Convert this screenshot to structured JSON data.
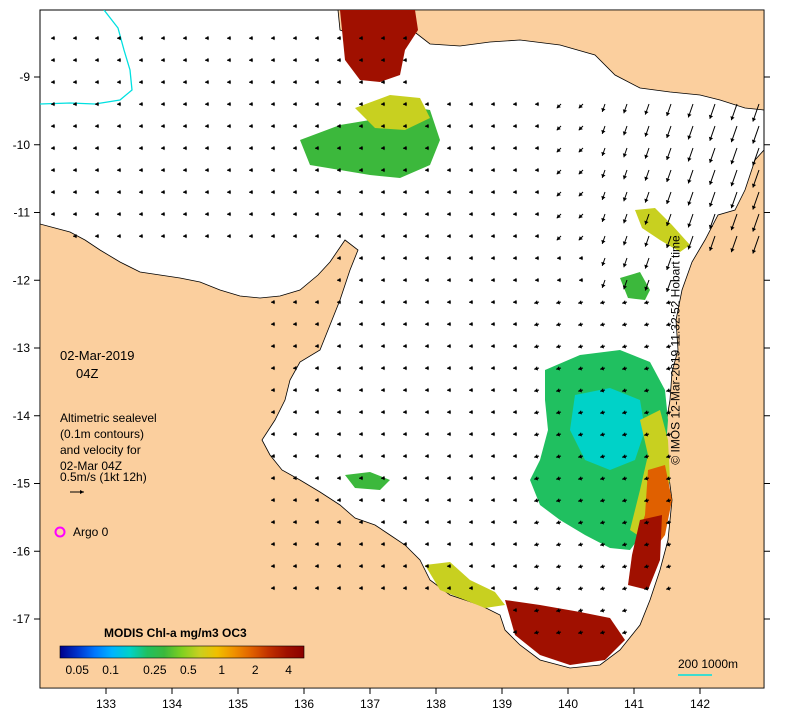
{
  "map": {
    "date_label": "02-Mar-2019",
    "time_label": "04Z",
    "legend_text": [
      "Altimetric sealevel",
      "(0.1m contours)",
      "and velocity for",
      "02-Mar 04Z",
      "0.5m/s (1kt 12h)"
    ],
    "argo_label": "Argo 0",
    "colorbar_title": "MODIS Chl-a mg/m3 OC3",
    "colorbar_ticks": [
      "0.05",
      "0.1",
      "0.25",
      "0.5",
      "1",
      "2",
      "4"
    ],
    "colorbar_colors": [
      "#00008b",
      "#0033cc",
      "#0077ff",
      "#00b4ff",
      "#00d2c8",
      "#20c060",
      "#3cb83c",
      "#80d020",
      "#c8d020",
      "#f0c000",
      "#f09000",
      "#e06000",
      "#c03000",
      "#a01000",
      "#8b0000"
    ],
    "scale_label": "200  1000m",
    "x_ticks": [
      "133",
      "134",
      "135",
      "136",
      "137",
      "138",
      "139",
      "140",
      "141",
      "142"
    ],
    "y_ticks": [
      "-9",
      "-10",
      "-11",
      "-12",
      "-13",
      "-14",
      "-15",
      "-16",
      "-17"
    ],
    "credit": "© IMOS 12-Mar-2019 11:32:52 Hobart time"
  },
  "colors": {
    "land": "#fbcf9e",
    "ocean": "#ffffff",
    "shelf_edge": "#00e0e0",
    "argo": "#ff00ff"
  }
}
